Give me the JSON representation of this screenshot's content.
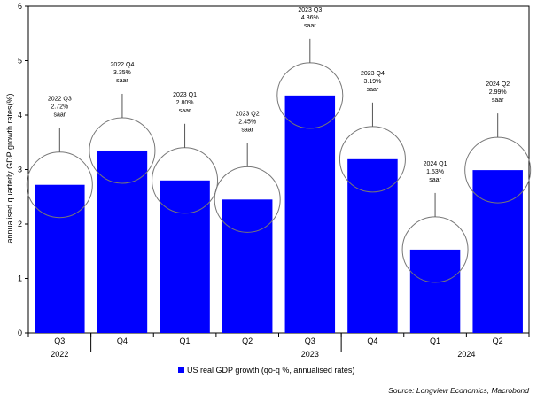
{
  "chart_data": {
    "type": "bar",
    "ylabel": "annualised quarterly GDP growth rates(%)",
    "ylim": [
      0,
      6
    ],
    "yticks": [
      "0",
      "1",
      "2",
      "3",
      "4",
      "5",
      "6"
    ],
    "categories": [
      "Q3",
      "Q4",
      "Q1",
      "Q2",
      "Q3",
      "Q4",
      "Q1",
      "Q2"
    ],
    "year_labels": [
      {
        "label": "2022",
        "center_index": 0
      },
      {
        "label": "2023",
        "center_index": 4
      },
      {
        "label": "2024",
        "center_index": 6.5
      }
    ],
    "series": [
      {
        "name": "US real GDP growth (qo-q %, annualised rates)",
        "color": "#0000ff",
        "values": [
          2.72,
          3.35,
          2.8,
          2.45,
          4.36,
          3.19,
          1.53,
          2.99
        ]
      }
    ],
    "annotations": [
      {
        "lines": [
          "2022 Q3",
          "2.72%",
          "saar"
        ]
      },
      {
        "lines": [
          "2022 Q4",
          "3.35%",
          "saar"
        ]
      },
      {
        "lines": [
          "2023 Q1",
          "2.80%",
          "saar"
        ]
      },
      {
        "lines": [
          "2023 Q2",
          "2.45%",
          "saar"
        ]
      },
      {
        "lines": [
          "2023 Q3",
          "4.36%",
          "saar"
        ]
      },
      {
        "lines": [
          "2023 Q4",
          "3.19%",
          "saar"
        ]
      },
      {
        "lines": [
          "2024 Q1",
          "1.53%",
          "saar"
        ]
      },
      {
        "lines": [
          "2024 Q2",
          "2.99%",
          "saar"
        ]
      }
    ],
    "legend": {
      "label": "US real GDP growth (qo-q %, annualised rates)",
      "placement": "bottom-center"
    },
    "source": "Source: Longview Economics, Macrobond",
    "grid": false
  }
}
